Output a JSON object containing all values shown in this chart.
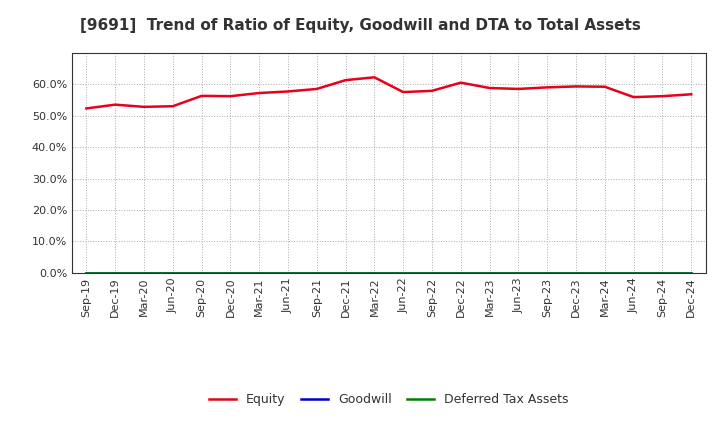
{
  "title": "[9691]  Trend of Ratio of Equity, Goodwill and DTA to Total Assets",
  "x_labels": [
    "Sep-19",
    "Dec-19",
    "Mar-20",
    "Jun-20",
    "Sep-20",
    "Dec-20",
    "Mar-21",
    "Jun-21",
    "Sep-21",
    "Dec-21",
    "Mar-22",
    "Jun-22",
    "Sep-22",
    "Dec-22",
    "Mar-23",
    "Jun-23",
    "Sep-23",
    "Dec-23",
    "Mar-24",
    "Jun-24",
    "Sep-24",
    "Dec-24"
  ],
  "equity": [
    52.3,
    53.5,
    52.8,
    53.0,
    56.3,
    56.2,
    57.2,
    57.7,
    58.5,
    61.3,
    62.2,
    57.5,
    57.9,
    60.5,
    58.8,
    58.5,
    59.0,
    59.3,
    59.2,
    55.9,
    56.2,
    56.8
  ],
  "goodwill": [
    0.0,
    0.0,
    0.0,
    0.0,
    0.0,
    0.0,
    0.0,
    0.0,
    0.0,
    0.0,
    0.0,
    0.0,
    0.0,
    0.0,
    0.0,
    0.0,
    0.0,
    0.0,
    0.0,
    0.0,
    0.0,
    0.0
  ],
  "dta": [
    0.0,
    0.0,
    0.0,
    0.0,
    0.0,
    0.0,
    0.0,
    0.0,
    0.0,
    0.0,
    0.0,
    0.0,
    0.0,
    0.0,
    0.0,
    0.0,
    0.0,
    0.0,
    0.0,
    0.0,
    0.0,
    0.0
  ],
  "equity_color": "#e8001c",
  "goodwill_color": "#0000cc",
  "dta_color": "#008000",
  "ylim": [
    0,
    70
  ],
  "yticks": [
    0,
    10,
    20,
    30,
    40,
    50,
    60
  ],
  "background_color": "#ffffff",
  "plot_bg_color": "#ffffff",
  "grid_color": "#aaaaaa",
  "title_fontsize": 11,
  "tick_fontsize": 8,
  "legend_labels": [
    "Equity",
    "Goodwill",
    "Deferred Tax Assets"
  ]
}
